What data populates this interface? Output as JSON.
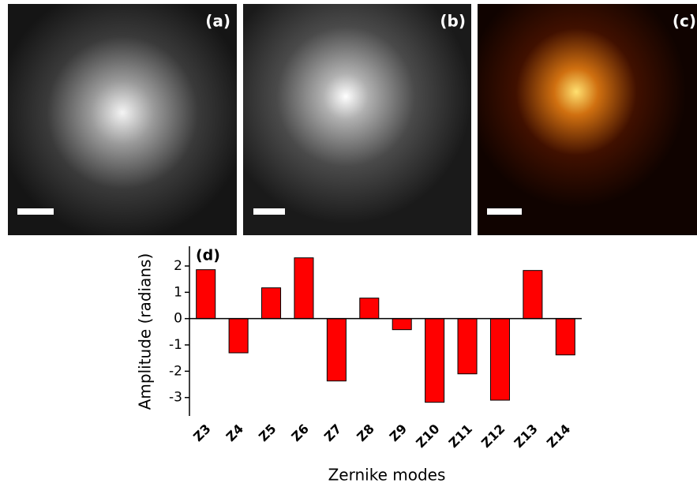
{
  "panels": [
    {
      "label": "(a)"
    },
    {
      "label": "(b)"
    },
    {
      "label": "(c)"
    }
  ],
  "chart_data": {
    "type": "bar",
    "panel_label": "(d)",
    "x_label": "Zernike modes",
    "y_label": "Amplitude (radians)",
    "categories": [
      "Z3",
      "Z4",
      "Z5",
      "Z6",
      "Z7",
      "Z8",
      "Z9",
      "Z10",
      "Z11",
      "Z12",
      "Z13",
      "Z14"
    ],
    "values": [
      1.86,
      -1.3,
      1.17,
      2.31,
      -2.37,
      0.78,
      -0.42,
      -3.18,
      -2.1,
      -3.1,
      1.83,
      -1.38
    ],
    "color": "#ff0000",
    "ylim": [
      -3.7,
      2.75
    ],
    "yticks": [
      -3,
      -2,
      -1,
      0,
      1,
      2
    ]
  }
}
